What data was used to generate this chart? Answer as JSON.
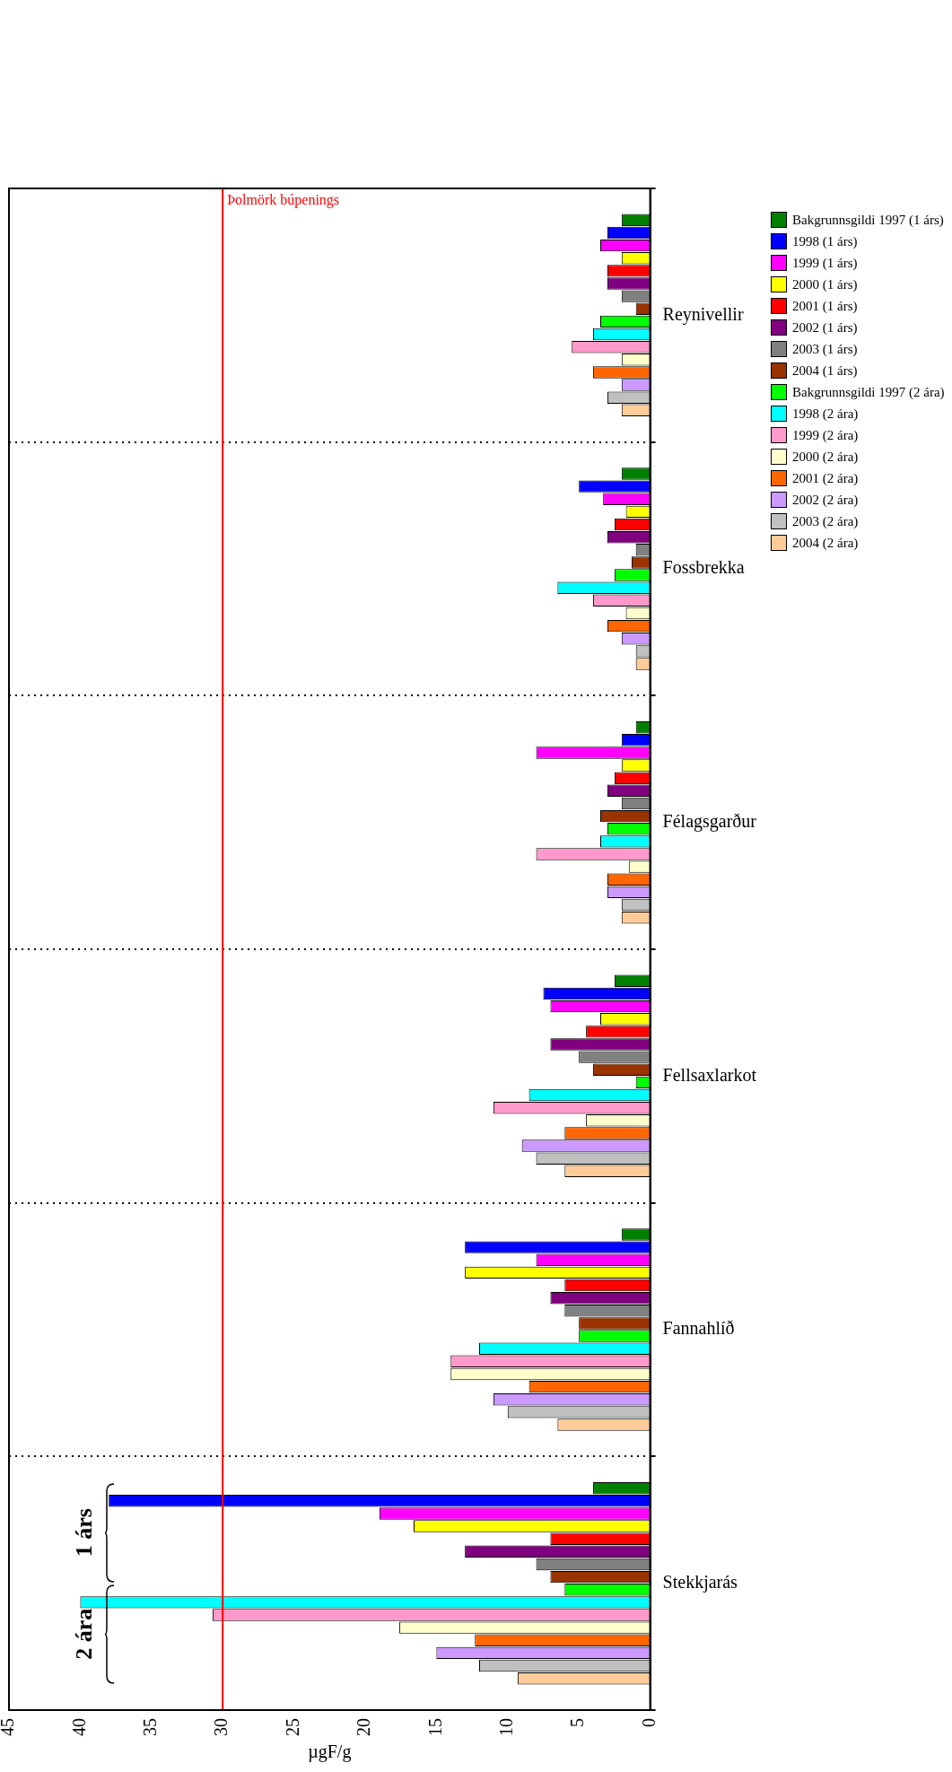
{
  "chart_data": {
    "type": "bar",
    "orientation": "horizontal",
    "xlabel": "µgF/g",
    "categories": [
      "Reynivellir",
      "Fossbrekka",
      "Félagsgarður",
      "Fellsaxlarkot",
      "Fannahlíð",
      "Stekkjarás"
    ],
    "series": [
      {
        "name": "Bakgrunnsgildi 1997 (1 árs)",
        "color": "#008000",
        "values": [
          2,
          2,
          1,
          2.5,
          2,
          4
        ]
      },
      {
        "name": "1998 (1 árs)",
        "color": "#0000ff",
        "values": [
          3,
          5,
          2,
          7.5,
          13,
          38
        ]
      },
      {
        "name": "1999 (1 árs)",
        "color": "#ff00ff",
        "values": [
          3.5,
          3.3,
          8,
          7,
          8,
          19
        ]
      },
      {
        "name": "2000 (1 árs)",
        "color": "#ffff00",
        "values": [
          2,
          1.7,
          2,
          3.5,
          13,
          16.6
        ]
      },
      {
        "name": "2001 (1 árs)",
        "color": "#ff0000",
        "values": [
          3,
          2.5,
          2.5,
          4.5,
          6,
          7
        ]
      },
      {
        "name": "2002 (1 árs)",
        "color": "#800080",
        "values": [
          3,
          3,
          3,
          7,
          7,
          13
        ]
      },
      {
        "name": "2003 (1 árs)",
        "color": "#808080",
        "values": [
          2,
          1,
          2,
          5,
          6,
          8
        ]
      },
      {
        "name": "2004 (1 árs)",
        "color": "#993300",
        "values": [
          1,
          1.3,
          3.5,
          4,
          5,
          7
        ]
      },
      {
        "name": "Bakgrunnsgildi 1997 (2 ára)",
        "color": "#00ff00",
        "values": [
          3.5,
          2.5,
          3,
          1,
          5,
          6
        ]
      },
      {
        "name": "1998 (2 ára)",
        "color": "#00ffff",
        "values": [
          4,
          6.5,
          3.5,
          8.5,
          12,
          40
        ]
      },
      {
        "name": "1999 (2 ára)",
        "color": "#ff99cc",
        "values": [
          5.5,
          4,
          8,
          11,
          14,
          30.7
        ]
      },
      {
        "name": "2000 (2 ára)",
        "color": "#ffffcc",
        "values": [
          2,
          1.7,
          1.5,
          4.5,
          14,
          17.6
        ]
      },
      {
        "name": "2001 (2 ára)",
        "color": "#ff6600",
        "values": [
          4,
          3,
          3,
          6,
          8.5,
          12.3
        ]
      },
      {
        "name": "2002 (2 ára)",
        "color": "#cc99ff",
        "values": [
          2,
          2,
          3,
          9,
          11,
          15
        ]
      },
      {
        "name": "2003 (2 ára)",
        "color": "#c0c0c0",
        "values": [
          3,
          1,
          2,
          8,
          10,
          12
        ]
      },
      {
        "name": "2004 (2 ára)",
        "color": "#ffcc99",
        "values": [
          2,
          1,
          2,
          6,
          6.5,
          9.3
        ]
      }
    ],
    "xlim": [
      45,
      0
    ],
    "xticks": [
      0,
      5,
      10,
      15,
      20,
      25,
      30,
      35,
      40,
      45
    ],
    "ref_lines": [
      {
        "axis": "x",
        "value": 30,
        "label": "Þolmörk búpenings",
        "color": "#ff0000"
      }
    ],
    "annotations": [
      "1 árs",
      "2 ára"
    ],
    "grid": "y",
    "legend": "right"
  }
}
